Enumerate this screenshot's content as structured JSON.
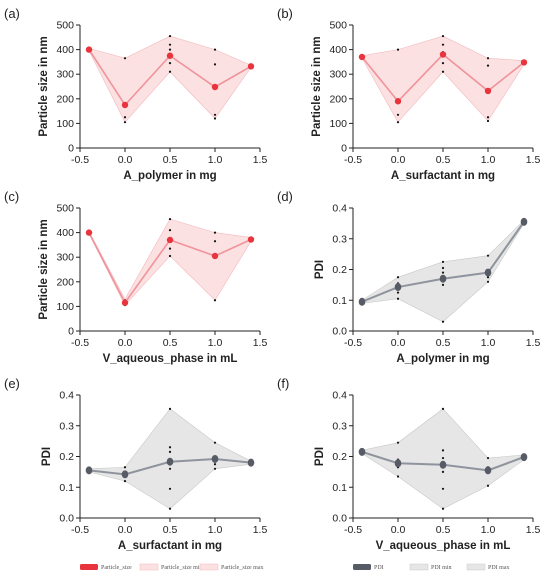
{
  "colors": {
    "particle_line": "#f0939b",
    "particle_marker": "#e8343d",
    "particle_band": "#fbe1e2",
    "particle_band_edge": "#f4b9bd",
    "pdi_line": "#8f939d",
    "pdi_marker": "#565b66",
    "pdi_band": "#e6e6e6",
    "pdi_band_edge": "#c9c9c9",
    "raw_points": "#111111"
  },
  "chart_data": [
    {
      "type": "line",
      "panel": "(a)",
      "metric": "size",
      "xlabel": "A_polymer in mg",
      "ylabel": "Particle size in nm",
      "xlim": [
        -0.5,
        1.5
      ],
      "ylim": [
        0,
        500
      ],
      "xticks": [
        "-0.5",
        "0.0",
        "0.5",
        "1.0",
        "1.5"
      ],
      "yticks": [
        "0",
        "100",
        "200",
        "300",
        "400",
        "500"
      ],
      "x": [
        -0.4,
        0.0,
        0.5,
        1.0,
        1.4
      ],
      "mean": [
        400,
        175,
        375,
        248,
        332
      ],
      "min": [
        395,
        105,
        310,
        120,
        328
      ],
      "max": [
        405,
        365,
        455,
        400,
        336
      ],
      "raw": [
        [
          -0.4,
          400
        ],
        [
          0.0,
          105
        ],
        [
          0.0,
          125
        ],
        [
          0.0,
          365
        ],
        [
          0.5,
          310
        ],
        [
          0.5,
          345
        ],
        [
          0.5,
          400
        ],
        [
          0.5,
          420
        ],
        [
          0.5,
          455
        ],
        [
          1.0,
          120
        ],
        [
          1.0,
          135
        ],
        [
          1.0,
          340
        ],
        [
          1.0,
          400
        ],
        [
          1.4,
          332
        ]
      ]
    },
    {
      "type": "line",
      "panel": "(b)",
      "metric": "size",
      "xlabel": "A_surfactant in mg",
      "ylabel": "Particle size in nm",
      "xlim": [
        -0.5,
        1.5
      ],
      "ylim": [
        0,
        500
      ],
      "xticks": [
        "-0.5",
        "0.0",
        "0.5",
        "1.0",
        "1.5"
      ],
      "yticks": [
        "0",
        "100",
        "200",
        "300",
        "400",
        "500"
      ],
      "x": [
        -0.4,
        0.0,
        0.5,
        1.0,
        1.4
      ],
      "mean": [
        370,
        190,
        380,
        232,
        348
      ],
      "min": [
        365,
        105,
        310,
        110,
        340
      ],
      "max": [
        375,
        400,
        455,
        365,
        355
      ],
      "raw": [
        [
          -0.4,
          370
        ],
        [
          0.0,
          105
        ],
        [
          0.0,
          135
        ],
        [
          0.0,
          400
        ],
        [
          0.5,
          310
        ],
        [
          0.5,
          345
        ],
        [
          0.5,
          390
        ],
        [
          0.5,
          420
        ],
        [
          0.5,
          455
        ],
        [
          1.0,
          110
        ],
        [
          1.0,
          125
        ],
        [
          1.0,
          335
        ],
        [
          1.0,
          365
        ],
        [
          1.4,
          348
        ]
      ]
    },
    {
      "type": "line",
      "panel": "(c)",
      "metric": "size",
      "xlabel": "V_aqueous_phase in mL",
      "ylabel": "Particle size in nm",
      "xlim": [
        -0.5,
        1.5
      ],
      "ylim": [
        0,
        500
      ],
      "xticks": [
        "-0.5",
        "0.0",
        "0.5",
        "1.0",
        "1.5"
      ],
      "yticks": [
        "0",
        "100",
        "200",
        "300",
        "400",
        "500"
      ],
      "x": [
        -0.4,
        0.0,
        0.5,
        1.0,
        1.4
      ],
      "mean": [
        400,
        115,
        370,
        305,
        372
      ],
      "min": [
        395,
        105,
        305,
        125,
        365
      ],
      "max": [
        405,
        130,
        455,
        400,
        380
      ],
      "raw": [
        [
          -0.4,
          400
        ],
        [
          0.0,
          105
        ],
        [
          0.0,
          125
        ],
        [
          0.5,
          305
        ],
        [
          0.5,
          335
        ],
        [
          0.5,
          375
        ],
        [
          0.5,
          410
        ],
        [
          0.5,
          455
        ],
        [
          1.0,
          125
        ],
        [
          1.0,
          310
        ],
        [
          1.0,
          365
        ],
        [
          1.0,
          400
        ],
        [
          1.4,
          372
        ]
      ]
    },
    {
      "type": "line",
      "panel": "(d)",
      "metric": "pdi",
      "xlabel": "A_polymer in mg",
      "ylabel": "PDI",
      "xlim": [
        -0.5,
        1.5
      ],
      "ylim": [
        0,
        0.4
      ],
      "xticks": [
        "-0.5",
        "0.0",
        "0.5",
        "1.0",
        "1.5"
      ],
      "yticks": [
        "0.0",
        "0.1",
        "0.2",
        "0.3",
        "0.4"
      ],
      "x": [
        -0.4,
        0.0,
        0.5,
        1.0,
        1.4
      ],
      "mean": [
        0.095,
        0.143,
        0.17,
        0.19,
        0.355
      ],
      "min": [
        0.09,
        0.105,
        0.03,
        0.16,
        0.35
      ],
      "max": [
        0.1,
        0.175,
        0.225,
        0.245,
        0.36
      ],
      "raw": [
        [
          -0.4,
          0.095
        ],
        [
          0.0,
          0.105
        ],
        [
          0.0,
          0.125
        ],
        [
          0.0,
          0.155
        ],
        [
          0.0,
          0.175
        ],
        [
          0.5,
          0.03
        ],
        [
          0.5,
          0.15
        ],
        [
          0.5,
          0.19
        ],
        [
          0.5,
          0.205
        ],
        [
          0.5,
          0.225
        ],
        [
          1.0,
          0.16
        ],
        [
          1.0,
          0.175
        ],
        [
          1.0,
          0.245
        ],
        [
          1.4,
          0.355
        ]
      ]
    },
    {
      "type": "line",
      "panel": "(e)",
      "metric": "pdi",
      "xlabel": "A_surfactant in mg",
      "ylabel": "PDI",
      "xlim": [
        -0.5,
        1.5
      ],
      "ylim": [
        0,
        0.4
      ],
      "xticks": [
        "-0.5",
        "0.0",
        "0.5",
        "1.0",
        "1.5"
      ],
      "yticks": [
        "0.0",
        "0.1",
        "0.2",
        "0.3",
        "0.4"
      ],
      "x": [
        -0.4,
        0.0,
        0.5,
        1.0,
        1.4
      ],
      "mean": [
        0.155,
        0.142,
        0.183,
        0.192,
        0.18
      ],
      "min": [
        0.15,
        0.12,
        0.03,
        0.16,
        0.175
      ],
      "max": [
        0.16,
        0.165,
        0.355,
        0.245,
        0.185
      ],
      "raw": [
        [
          -0.4,
          0.155
        ],
        [
          0.0,
          0.12
        ],
        [
          0.0,
          0.145
        ],
        [
          0.0,
          0.165
        ],
        [
          0.5,
          0.03
        ],
        [
          0.5,
          0.095
        ],
        [
          0.5,
          0.16
        ],
        [
          0.5,
          0.19
        ],
        [
          0.5,
          0.215
        ],
        [
          0.5,
          0.23
        ],
        [
          0.5,
          0.355
        ],
        [
          1.0,
          0.16
        ],
        [
          1.0,
          0.175
        ],
        [
          1.0,
          0.245
        ],
        [
          1.4,
          0.18
        ]
      ]
    },
    {
      "type": "line",
      "panel": "(f)",
      "metric": "pdi",
      "xlabel": "V_aqueous_phase in mL",
      "ylabel": "PDI",
      "xlim": [
        -0.5,
        1.5
      ],
      "ylim": [
        0,
        0.4
      ],
      "xticks": [
        "-0.5",
        "0.0",
        "0.5",
        "1.0",
        "1.5"
      ],
      "yticks": [
        "0.0",
        "0.1",
        "0.2",
        "0.3",
        "0.4"
      ],
      "x": [
        -0.4,
        0.0,
        0.5,
        1.0,
        1.4
      ],
      "mean": [
        0.215,
        0.178,
        0.173,
        0.155,
        0.198
      ],
      "min": [
        0.21,
        0.135,
        0.03,
        0.105,
        0.19
      ],
      "max": [
        0.22,
        0.245,
        0.355,
        0.195,
        0.205
      ],
      "raw": [
        [
          -0.4,
          0.215
        ],
        [
          0.0,
          0.135
        ],
        [
          0.0,
          0.165
        ],
        [
          0.0,
          0.19
        ],
        [
          0.0,
          0.245
        ],
        [
          0.5,
          0.03
        ],
        [
          0.5,
          0.095
        ],
        [
          0.5,
          0.15
        ],
        [
          0.5,
          0.195
        ],
        [
          0.5,
          0.22
        ],
        [
          0.5,
          0.355
        ],
        [
          1.0,
          0.105
        ],
        [
          1.0,
          0.165
        ],
        [
          1.0,
          0.195
        ],
        [
          1.4,
          0.198
        ]
      ]
    }
  ],
  "legends": [
    {
      "group": "size",
      "entries": [
        {
          "label": "Particle_size",
          "style": "marker"
        },
        {
          "label": "Particle_size min",
          "style": "band"
        },
        {
          "label": "Particle_size max",
          "style": "band"
        }
      ]
    },
    {
      "group": "pdi",
      "entries": [
        {
          "label": "PDI",
          "style": "marker"
        },
        {
          "label": "PDI min",
          "style": "band"
        },
        {
          "label": "PDI max",
          "style": "band"
        }
      ]
    }
  ]
}
